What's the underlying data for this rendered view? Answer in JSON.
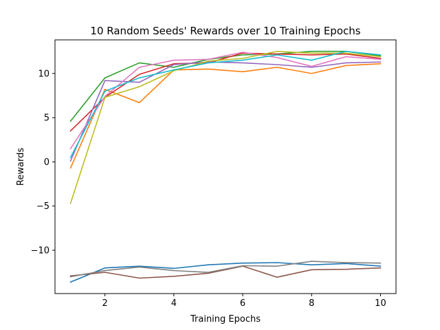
{
  "chart_data": {
    "type": "line",
    "title": "10 Random Seeds' Rewards over 10 Training Epochs",
    "xlabel": "Training Epochs",
    "ylabel": "Rewards",
    "x": [
      1,
      2,
      3,
      4,
      5,
      6,
      7,
      8,
      9,
      10
    ],
    "xlim": [
      0.55,
      10.45
    ],
    "ylim": [
      -14.9,
      13.8
    ],
    "xticks": [
      2,
      4,
      6,
      8,
      10
    ],
    "yticks": [
      -10,
      -5,
      0,
      5,
      10
    ],
    "ytick_labels": [
      "−10",
      "−5",
      "0",
      "5",
      "10"
    ],
    "grid": false,
    "legend": "none",
    "series": [
      {
        "color": "#1f77b4",
        "values": [
          -13.6,
          -12.0,
          -11.8,
          -12.05,
          -11.65,
          -11.45,
          -11.4,
          -11.65,
          -11.5,
          -11.8
        ]
      },
      {
        "color": "#ff7f0e",
        "values": [
          -0.7,
          8.2,
          6.7,
          10.4,
          10.5,
          10.2,
          10.7,
          10.0,
          10.9,
          11.1
        ]
      },
      {
        "color": "#2ca02c",
        "values": [
          4.6,
          9.5,
          11.2,
          10.7,
          11.6,
          12.1,
          12.2,
          12.5,
          12.5,
          12.0
        ]
      },
      {
        "color": "#d62728",
        "values": [
          3.5,
          7.3,
          9.9,
          11.1,
          11.2,
          12.3,
          12.2,
          12.1,
          12.2,
          11.7
        ]
      },
      {
        "color": "#9467bd",
        "values": [
          0.1,
          9.2,
          9.0,
          11.0,
          11.3,
          11.2,
          11.0,
          10.7,
          11.2,
          11.3
        ]
      },
      {
        "color": "#8c564b",
        "values": [
          -12.9,
          -12.5,
          -13.15,
          -12.95,
          -12.6,
          -11.8,
          -13.05,
          -12.2,
          -12.15,
          -12.0
        ]
      },
      {
        "color": "#e377c2",
        "values": [
          1.5,
          7.4,
          10.7,
          11.5,
          11.6,
          12.4,
          11.8,
          10.8,
          11.9,
          11.6
        ]
      },
      {
        "color": "#7f7f7f",
        "values": [
          -13.0,
          -12.3,
          -11.9,
          -12.3,
          -12.5,
          -11.75,
          -11.8,
          -11.25,
          -11.4,
          -11.45
        ]
      },
      {
        "color": "#bcbd22",
        "values": [
          -4.7,
          7.3,
          8.5,
          10.3,
          11.4,
          11.7,
          12.5,
          12.3,
          12.3,
          11.9
        ]
      },
      {
        "color": "#17becf",
        "values": [
          0.5,
          8.0,
          9.5,
          10.4,
          11.2,
          11.5,
          12.1,
          11.5,
          12.5,
          12.1
        ]
      }
    ]
  }
}
